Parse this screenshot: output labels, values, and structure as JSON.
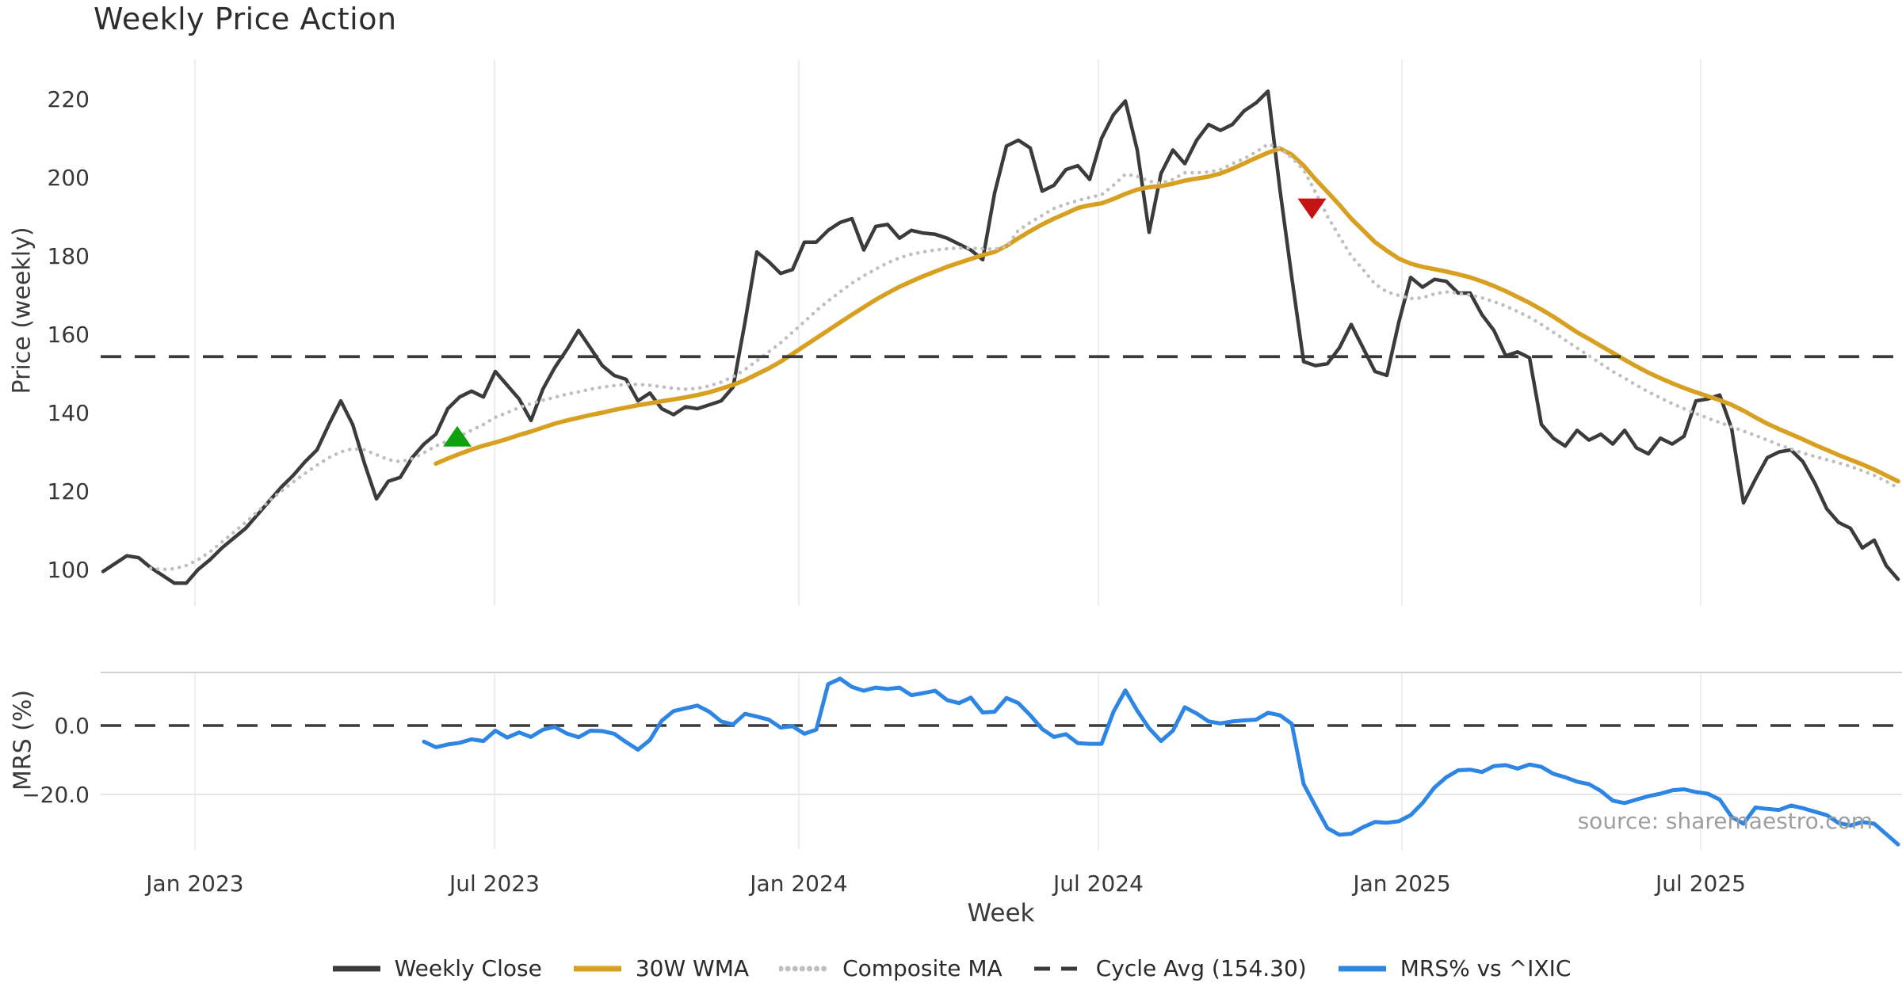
{
  "chart_data": {
    "type": "line",
    "title": "Weekly Price Action",
    "xlabel": "Week",
    "source_note": "source: sharemaestro.com",
    "panels": [
      {
        "name": "price",
        "ylabel": "Price (weekly)",
        "ylim": [
          90.6,
          231.3
        ],
        "yticks": [
          {
            "v": 220,
            "label": "220"
          },
          {
            "v": 200,
            "label": "200"
          },
          {
            "v": 180,
            "label": "180"
          },
          {
            "v": 160,
            "label": "160"
          },
          {
            "v": 140,
            "label": "140"
          },
          {
            "v": 120,
            "label": "120"
          },
          {
            "v": 100,
            "label": "100"
          }
        ]
      },
      {
        "name": "mrs",
        "ylabel": "MRS (%)",
        "ylim": [
          -36.2,
          15.4
        ],
        "yticks": [
          {
            "v": 0,
            "label": "0.0"
          },
          {
            "v": -20,
            "label": "−20.0"
          }
        ]
      }
    ],
    "x_ticks": [
      {
        "week": 7.73,
        "label": "Jan 2023"
      },
      {
        "week": 32.93,
        "label": "Jul 2023"
      },
      {
        "week": 58.53,
        "label": "Jan 2024"
      },
      {
        "week": 83.73,
        "label": "Jul 2024"
      },
      {
        "week": 109.27,
        "label": "Jan 2025"
      },
      {
        "week": 134.4,
        "label": "Jul 2025"
      }
    ],
    "series": [
      {
        "name": "Weekly Close",
        "panel": "price",
        "color": "#3b3b3b",
        "width": 4.5,
        "style": "solid",
        "start_week": 0,
        "values": [
          99.5,
          101.5,
          103.5,
          103,
          100.5,
          98.5,
          96.5,
          96.5,
          100,
          102.5,
          105.5,
          108,
          110.5,
          114,
          117.5,
          121,
          124,
          127.5,
          130.5,
          137,
          143,
          137,
          127,
          118,
          122.5,
          123.5,
          128.5,
          132,
          134.5,
          141,
          144,
          145.5,
          144,
          150.5,
          147,
          143.5,
          138,
          146,
          151.5,
          156,
          161,
          156.5,
          152,
          149.5,
          148.5,
          143,
          145,
          141,
          139.5,
          141.5,
          141,
          142,
          143,
          146.5,
          163,
          181,
          178.5,
          175.5,
          176.5,
          183.5,
          183.5,
          186.5,
          188.5,
          189.5,
          181.5,
          187.5,
          188,
          184.5,
          186.5,
          185.8,
          185.5,
          184.5,
          183,
          181.5,
          179,
          196,
          208,
          209.5,
          207.5,
          196.5,
          198,
          202,
          203,
          199.5,
          210,
          216,
          219.5,
          207,
          186,
          201,
          207,
          203.5,
          209.5,
          213.5,
          212,
          213.5,
          217,
          219,
          222,
          197,
          174.5,
          153,
          152,
          152.5,
          156.5,
          162.5,
          156.5,
          150.5,
          149.5,
          163,
          174.5,
          172,
          174,
          173.5,
          170.5,
          170.5,
          165,
          161,
          154.5,
          155.5,
          154,
          137,
          133.5,
          131.5,
          135.5,
          133,
          134.5,
          132,
          135.5,
          131,
          129.5,
          133.5,
          132,
          134,
          143,
          143.5,
          144.5,
          136,
          117,
          123,
          128.5,
          130,
          130.5,
          127.5,
          122,
          115.5,
          112,
          110.5,
          105.5,
          107.5,
          101,
          97.5
        ]
      },
      {
        "name": "30W WMA",
        "panel": "price",
        "color": "#d7a021",
        "width": 5.5,
        "style": "solid",
        "start_week": 28,
        "values": [
          127,
          128.3,
          129.5,
          130.6,
          131.6,
          132.4,
          133.3,
          134.3,
          135.2,
          136.2,
          137.2,
          138,
          138.7,
          139.4,
          140,
          140.7,
          141.3,
          141.9,
          142.4,
          142.9,
          143.4,
          143.9,
          144.5,
          145.2,
          146.1,
          147.1,
          148.3,
          149.8,
          151.3,
          153,
          155,
          157,
          159,
          161,
          163,
          165,
          166.9,
          168.8,
          170.5,
          172.1,
          173.5,
          174.8,
          176,
          177.2,
          178.2,
          179.2,
          180.2,
          181,
          182.5,
          184.5,
          186.3,
          188,
          189.5,
          190.8,
          192.2,
          192.9,
          193.4,
          194.5,
          195.8,
          196.9,
          197.5,
          197.8,
          198.4,
          199.2,
          199.7,
          200.2,
          201,
          202.2,
          203.6,
          205,
          206.3,
          207.4,
          205.8,
          203,
          199.5,
          196.3,
          193,
          189.5,
          186.5,
          183.5,
          181.3,
          179.3,
          178,
          177.2,
          176.6,
          176,
          175.3,
          174.5,
          173.5,
          172.3,
          171,
          169.5,
          168,
          166.3,
          164.5,
          162.5,
          160.5,
          158.8,
          157,
          155.3,
          153.5,
          151.8,
          150.2,
          148.8,
          147.5,
          146.3,
          145.2,
          144.2,
          143.2,
          142,
          140.5,
          138.8,
          137.2,
          135.8,
          134.5,
          133.2,
          131.8,
          130.5,
          129.2,
          128,
          126.8,
          125.5,
          124,
          122.5
        ]
      },
      {
        "name": "Composite MA",
        "panel": "price",
        "color": "#bfbfbf",
        "width": 4.5,
        "style": "dotted",
        "start_week": 4,
        "values": [
          100.3,
          100,
          100.2,
          101,
          102.5,
          104.5,
          107,
          109.5,
          112,
          114.8,
          117.5,
          120,
          122.3,
          124.5,
          126.6,
          128.5,
          130,
          130.8,
          130.5,
          129.3,
          128,
          127.5,
          128.2,
          129.8,
          131.5,
          132.8,
          134,
          135.5,
          137,
          138.8,
          140,
          141.3,
          142.3,
          143.2,
          143.9,
          144.7,
          145.3,
          146,
          146.5,
          146.9,
          147.2,
          147.2,
          147,
          146.6,
          146.2,
          146,
          146.2,
          146.8,
          147.8,
          149.2,
          151,
          153.2,
          155.5,
          157.8,
          160.5,
          163.2,
          166,
          168.5,
          170.8,
          173,
          174.9,
          176.6,
          178.2,
          179.5,
          180.4,
          181,
          181.5,
          181.8,
          182,
          182,
          181.8,
          181.7,
          182.3,
          186.5,
          188.5,
          190.3,
          192.1,
          193.2,
          194.1,
          194.9,
          195.6,
          198,
          200.8,
          200.3,
          199,
          198.5,
          199.5,
          201.2,
          201.2,
          201.4,
          202,
          203.5,
          204.8,
          206.5,
          208.5,
          207.5,
          205,
          202,
          196.2,
          190.1,
          185,
          180,
          176.5,
          172.8,
          170.8,
          169.9,
          169.1,
          169.3,
          170.3,
          170.8,
          170.5,
          170,
          169.3,
          168.3,
          167.2,
          165.8,
          164.3,
          162.5,
          160.5,
          158.5,
          156.5,
          154.5,
          152.5,
          150.5,
          148.8,
          147,
          145.3,
          143.8,
          142.3,
          141,
          139.8,
          138.6,
          137.5,
          136.4,
          135.3,
          134.2,
          133,
          131.8,
          130.7,
          129.7,
          128.8,
          128,
          127.2,
          126.3,
          125.2,
          124,
          122.5,
          120.8
        ]
      },
      {
        "name": "Cycle Avg (154.30)",
        "panel": "price",
        "color": "#3a3a3a",
        "width": 3.8,
        "style": "dashed",
        "const_value": 154.3
      },
      {
        "name": "MRS% vs ^IXIC",
        "panel": "mrs",
        "color": "#2e86e4",
        "width": 5,
        "style": "solid",
        "start_week": 27,
        "values": [
          -4.7,
          -6.3,
          -5.5,
          -5,
          -4,
          -4.5,
          -1.5,
          -3.5,
          -2,
          -3.3,
          -1.2,
          -0.4,
          -2.3,
          -3.4,
          -1.5,
          -1.6,
          -2.4,
          -4.8,
          -7,
          -4.2,
          1.4,
          4.2,
          5,
          5.8,
          4,
          1.2,
          0.3,
          3.4,
          2.6,
          1.7,
          -0.6,
          -0.2,
          -2.4,
          -1.2,
          12,
          13.6,
          11.2,
          10.1,
          11,
          10.6,
          11,
          8.8,
          9.4,
          10.1,
          7.4,
          6.5,
          8.1,
          3.8,
          4,
          8,
          6.5,
          3,
          -1,
          -3.3,
          -2.5,
          -5.1,
          -5.3,
          -5.3,
          4,
          10.2,
          4.3,
          -0.8,
          -4.5,
          -1.5,
          5.3,
          3.5,
          1.2,
          0.6,
          1.2,
          1.5,
          1.7,
          3.7,
          3,
          0.5,
          -17,
          -23.5,
          -29.8,
          -31.7,
          -31.4,
          -29.5,
          -28,
          -28.2,
          -27.8,
          -26,
          -22.5,
          -18,
          -15,
          -13,
          -12.8,
          -13.5,
          -11.8,
          -11.5,
          -12.5,
          -11.3,
          -12,
          -14,
          -15,
          -16.3,
          -17,
          -19,
          -21.8,
          -22.5,
          -21.5,
          -20.5,
          -19.8,
          -18.8,
          -18.5,
          -19.3,
          -19.8,
          -21.5,
          -26.5,
          -28.5,
          -23.8,
          -24.2,
          -24.5,
          -23.2,
          -24,
          -25,
          -26,
          -28.3,
          -29,
          -28,
          -28.5,
          -31.5,
          -34.5
        ]
      }
    ],
    "markers": [
      {
        "shape": "triangle-up",
        "color": "#0ea30e",
        "week": 29.8,
        "value": 134
      },
      {
        "shape": "triangle-down",
        "color": "#c51212",
        "week": 101.7,
        "value": 192
      }
    ],
    "legend": {
      "items": [
        {
          "label": "Weekly Close",
          "color": "#3b3b3b",
          "style": "solid"
        },
        {
          "label": "30W WMA",
          "color": "#d7a021",
          "style": "solid"
        },
        {
          "label": "Composite MA",
          "color": "#bfbfbf",
          "style": "dotted"
        },
        {
          "label": "Cycle Avg (154.30)",
          "color": "#3a3a3a",
          "style": "dashed"
        },
        {
          "label": "MRS% vs ^IXIC",
          "color": "#2e86e4",
          "style": "solid"
        }
      ]
    }
  }
}
